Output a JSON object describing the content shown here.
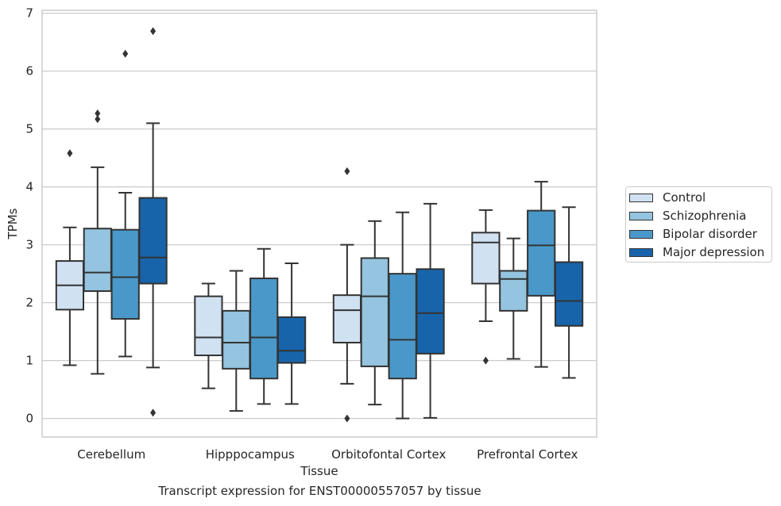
{
  "caption": "Transcript expression for ENST00000557057 by tissue",
  "chart_data": {
    "type": "box",
    "xlabel": "Tissue",
    "ylabel": "TPMs",
    "ylim": [
      -0.32,
      7.05
    ],
    "yticks": [
      0,
      1,
      2,
      3,
      4,
      5,
      6,
      7
    ],
    "grid": "horizontal",
    "legend_position": "right",
    "categories": [
      "Cerebellum",
      "Hipppocampus",
      "Orbitofontal Cortex",
      "Prefrontal Cortex"
    ],
    "series": [
      {
        "name": "Control",
        "color": "#d0e1f2",
        "boxes": [
          {
            "whislo": 0.92,
            "q1": 1.88,
            "med": 2.3,
            "q3": 2.72,
            "whishi": 3.3,
            "fliers": [
              4.58
            ]
          },
          {
            "whislo": 0.52,
            "q1": 1.09,
            "med": 1.4,
            "q3": 2.11,
            "whishi": 2.33,
            "fliers": []
          },
          {
            "whislo": 0.6,
            "q1": 1.31,
            "med": 1.87,
            "q3": 2.13,
            "whishi": 3.0,
            "fliers": [
              4.27,
              0.0
            ]
          },
          {
            "whislo": 1.68,
            "q1": 2.33,
            "med": 3.04,
            "q3": 3.21,
            "whishi": 3.6,
            "fliers": [
              1.0
            ]
          }
        ]
      },
      {
        "name": "Schizophrenia",
        "color": "#94c4df",
        "boxes": [
          {
            "whislo": 0.77,
            "q1": 2.2,
            "med": 2.52,
            "q3": 3.28,
            "whishi": 4.34,
            "fliers": [
              5.27,
              5.17
            ]
          },
          {
            "whislo": 0.13,
            "q1": 0.86,
            "med": 1.31,
            "q3": 1.86,
            "whishi": 2.55,
            "fliers": []
          },
          {
            "whislo": 0.24,
            "q1": 0.9,
            "med": 2.11,
            "q3": 2.77,
            "whishi": 3.41,
            "fliers": []
          },
          {
            "whislo": 1.03,
            "q1": 1.86,
            "med": 2.41,
            "q3": 2.55,
            "whishi": 3.11,
            "fliers": []
          }
        ]
      },
      {
        "name": "Bipolar disorder",
        "color": "#4a98c9",
        "boxes": [
          {
            "whislo": 1.07,
            "q1": 1.72,
            "med": 2.44,
            "q3": 3.26,
            "whishi": 3.9,
            "fliers": [
              6.3
            ]
          },
          {
            "whislo": 0.25,
            "q1": 0.69,
            "med": 1.4,
            "q3": 2.42,
            "whishi": 2.93,
            "fliers": []
          },
          {
            "whislo": 0.0,
            "q1": 0.69,
            "med": 1.36,
            "q3": 2.5,
            "whishi": 3.56,
            "fliers": []
          },
          {
            "whislo": 0.89,
            "q1": 2.12,
            "med": 2.99,
            "q3": 3.59,
            "whishi": 4.09,
            "fliers": []
          }
        ]
      },
      {
        "name": "Major depression",
        "color": "#1764ab",
        "boxes": [
          {
            "whislo": 0.88,
            "q1": 2.33,
            "med": 2.78,
            "q3": 3.81,
            "whishi": 5.1,
            "fliers": [
              6.69,
              0.1
            ]
          },
          {
            "whislo": 0.25,
            "q1": 0.96,
            "med": 1.17,
            "q3": 1.75,
            "whishi": 2.68,
            "fliers": []
          },
          {
            "whislo": 0.01,
            "q1": 1.12,
            "med": 1.82,
            "q3": 2.58,
            "whishi": 3.71,
            "fliers": []
          },
          {
            "whislo": 0.7,
            "q1": 1.6,
            "med": 2.03,
            "q3": 2.7,
            "whishi": 3.65,
            "fliers": []
          }
        ]
      }
    ]
  }
}
